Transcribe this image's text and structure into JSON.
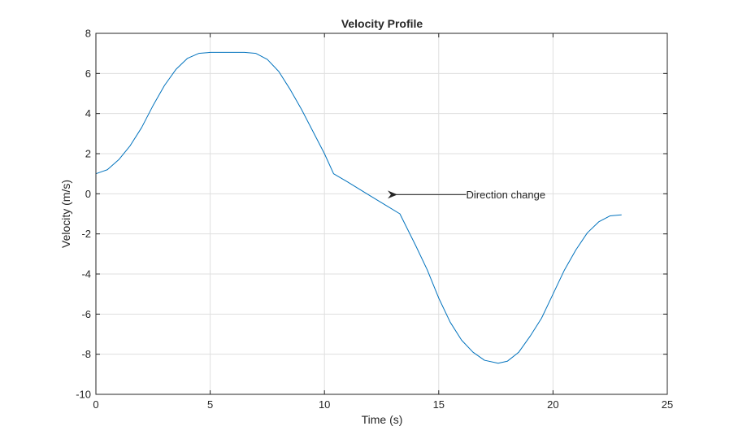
{
  "chart_data": {
    "type": "line",
    "title": "Velocity Profile",
    "xlabel": "Time (s)",
    "ylabel": "Velocity (m/s)",
    "xlim": [
      0,
      25
    ],
    "ylim": [
      -10,
      8
    ],
    "xticks": [
      0,
      5,
      10,
      15,
      20,
      25
    ],
    "yticks": [
      8,
      6,
      4,
      2,
      0,
      -2,
      -4,
      -6,
      -8,
      -10
    ],
    "grid": true,
    "series": [
      {
        "color": "#0072bd",
        "x": [
          0,
          0.5,
          1.0,
          1.5,
          2.0,
          2.5,
          3.0,
          3.5,
          4.0,
          4.5,
          5.0,
          5.5,
          6.0,
          6.5,
          7.0,
          7.5,
          8.0,
          8.5,
          9.0,
          9.5,
          10.0,
          10.4,
          11.0,
          12.0,
          13.3,
          14.0,
          14.5,
          15.0,
          15.5,
          16.0,
          16.5,
          17.0,
          17.6,
          18.0,
          18.5,
          19.0,
          19.5,
          20.0,
          20.5,
          21.0,
          21.5,
          22.0,
          22.5,
          23.0
        ],
        "y": [
          1.0,
          1.2,
          1.7,
          2.4,
          3.3,
          4.4,
          5.4,
          6.2,
          6.75,
          7.0,
          7.05,
          7.05,
          7.05,
          7.05,
          7.0,
          6.7,
          6.1,
          5.2,
          4.2,
          3.1,
          2.0,
          1.0,
          0.6,
          -0.1,
          -1.0,
          -2.6,
          -3.8,
          -5.2,
          -6.4,
          -7.3,
          -7.9,
          -8.3,
          -8.45,
          -8.35,
          -7.9,
          -7.1,
          -6.2,
          -5.0,
          -3.8,
          -2.8,
          -1.95,
          -1.4,
          -1.1,
          -1.05
        ]
      }
    ],
    "annotations": [
      {
        "text": "Direction change",
        "x": 16.2,
        "y": 0,
        "arrow_to": [
          12.8,
          0
        ]
      }
    ]
  }
}
